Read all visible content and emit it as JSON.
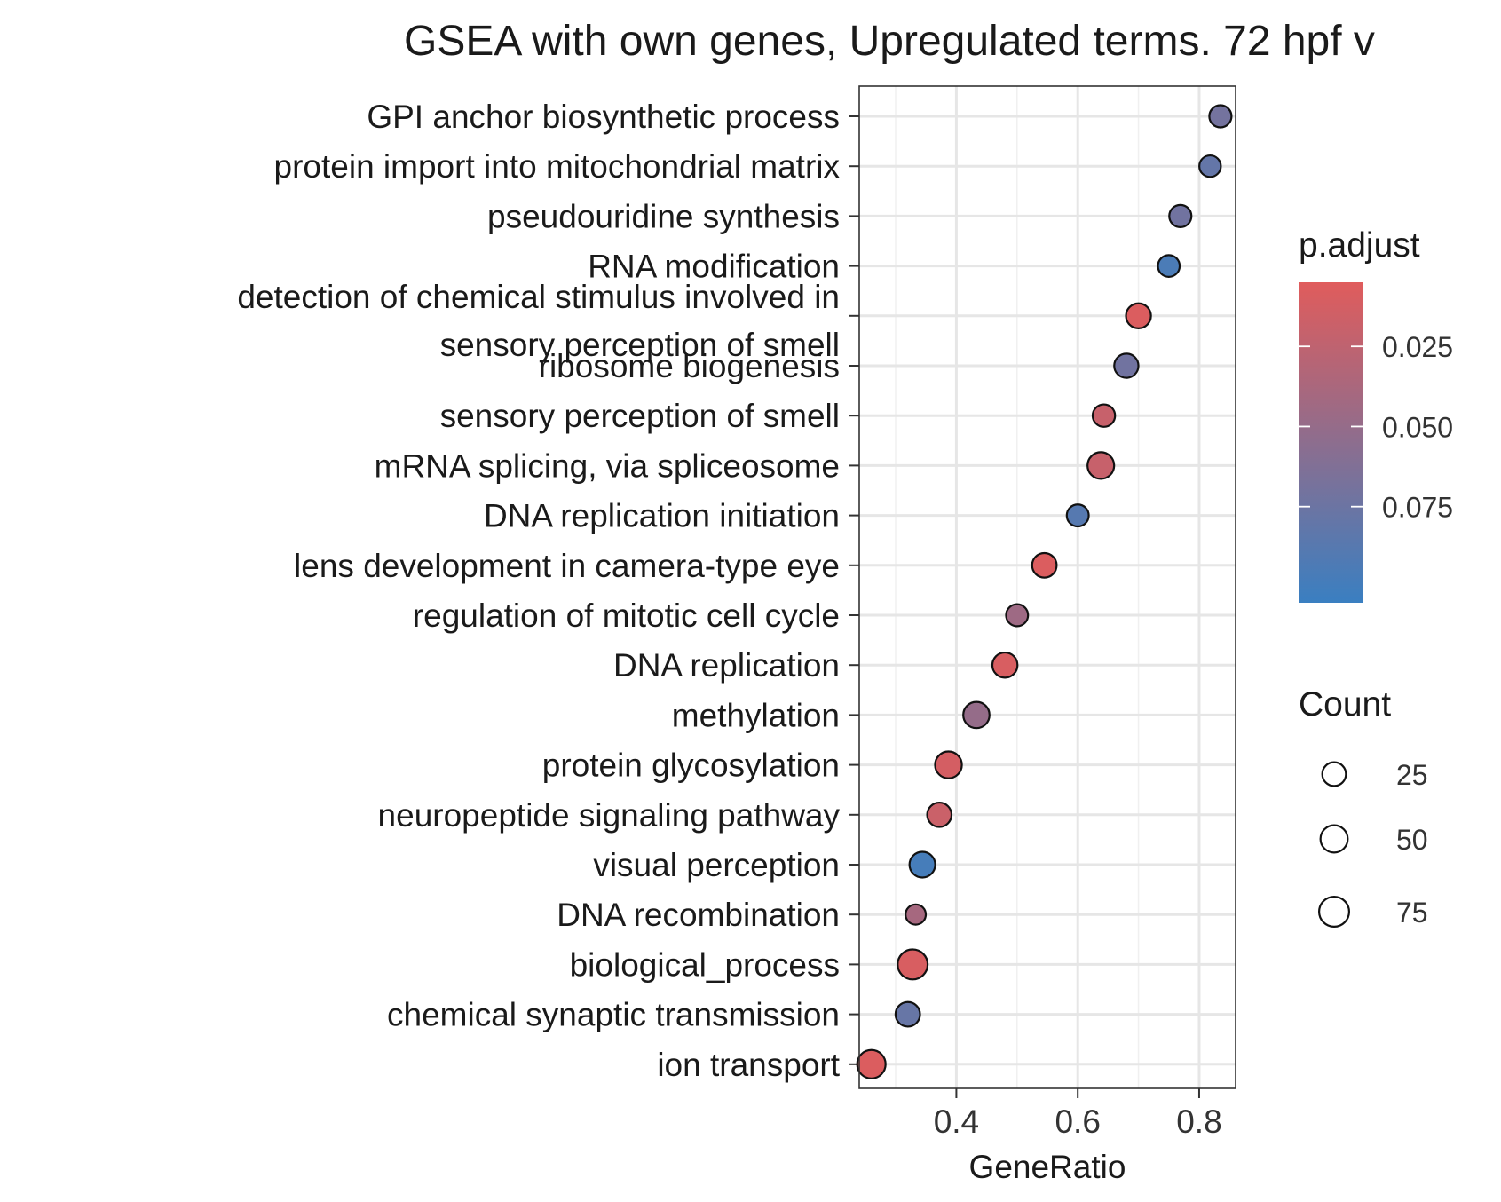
{
  "chart_data": {
    "type": "scatter",
    "title": "GSEA with own genes, Upregulated terms. 72 hpf v",
    "xlabel": "GeneRatio",
    "ylabel": "",
    "xlim": [
      0.24,
      0.86
    ],
    "xticks": [
      0.4,
      0.6,
      0.8
    ],
    "xtick_labels": [
      "0.4",
      "0.6",
      "0.8"
    ],
    "grid": true,
    "terms": [
      {
        "label": "GPI anchor biosynthetic process",
        "gene_ratio": 0.835,
        "p_adjust": 0.07,
        "count": 17
      },
      {
        "label": "protein import into mitochondrial matrix",
        "gene_ratio": 0.818,
        "p_adjust": 0.08,
        "count": 14
      },
      {
        "label": "pseudouridine synthesis",
        "gene_ratio": 0.769,
        "p_adjust": 0.072,
        "count": 17
      },
      {
        "label": "RNA modification",
        "gene_ratio": 0.75,
        "p_adjust": 0.095,
        "count": 15
      },
      {
        "label": "detection of chemical stimulus involved in sensory perception of smell",
        "gene_ratio": 0.7,
        "p_adjust": 0.008,
        "count": 33
      },
      {
        "label": "ribosome biogenesis",
        "gene_ratio": 0.68,
        "p_adjust": 0.072,
        "count": 28
      },
      {
        "label": "sensory perception of smell",
        "gene_ratio": 0.643,
        "p_adjust": 0.02,
        "count": 18
      },
      {
        "label": "mRNA splicing, via spliceosome",
        "gene_ratio": 0.638,
        "p_adjust": 0.02,
        "count": 45
      },
      {
        "label": "DNA replication initiation",
        "gene_ratio": 0.6,
        "p_adjust": 0.088,
        "count": 16
      },
      {
        "label": "lens development in camera-type eye",
        "gene_ratio": 0.545,
        "p_adjust": 0.008,
        "count": 30
      },
      {
        "label": "regulation of mitotic cell cycle",
        "gene_ratio": 0.5,
        "p_adjust": 0.045,
        "count": 16
      },
      {
        "label": "DNA replication",
        "gene_ratio": 0.48,
        "p_adjust": 0.01,
        "count": 34
      },
      {
        "label": "methylation",
        "gene_ratio": 0.433,
        "p_adjust": 0.05,
        "count": 42
      },
      {
        "label": "protein glycosylation",
        "gene_ratio": 0.387,
        "p_adjust": 0.012,
        "count": 46
      },
      {
        "label": "neuropeptide signaling pathway",
        "gene_ratio": 0.372,
        "p_adjust": 0.018,
        "count": 29
      },
      {
        "label": "visual perception",
        "gene_ratio": 0.344,
        "p_adjust": 0.098,
        "count": 38
      },
      {
        "label": "DNA recombination",
        "gene_ratio": 0.333,
        "p_adjust": 0.04,
        "count": 9
      },
      {
        "label": "biological_process",
        "gene_ratio": 0.328,
        "p_adjust": 0.01,
        "count": 75
      },
      {
        "label": "chemical synaptic transmission",
        "gene_ratio": 0.32,
        "p_adjust": 0.078,
        "count": 30
      },
      {
        "label": "ion transport",
        "gene_ratio": 0.26,
        "p_adjust": 0.008,
        "count": 60
      }
    ],
    "color_legend": {
      "title": "p.adjust",
      "range": [
        0.005,
        0.105
      ],
      "breaks": [
        0.025,
        0.05,
        0.075
      ],
      "break_labels": [
        "0.025",
        "0.050",
        "0.075"
      ],
      "low_color": "#e05c5c",
      "high_color": "#3a7fc1"
    },
    "size_legend": {
      "title": "Count",
      "breaks": [
        25,
        50,
        75
      ],
      "break_labels": [
        "25",
        "50",
        "75"
      ]
    }
  }
}
